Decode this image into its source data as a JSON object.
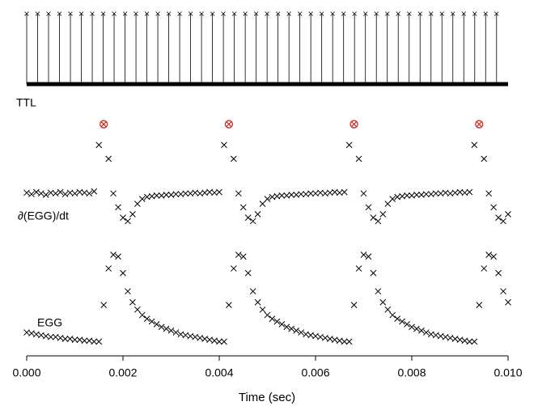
{
  "chart_data": [
    {
      "type": "stem",
      "title": "TTL",
      "x": [
        0,
        0.000227,
        0.000454,
        0.000681,
        0.000908,
        0.001135,
        0.001362,
        0.001589,
        0.001816,
        0.002043,
        0.00227,
        0.002497,
        0.002724,
        0.002951,
        0.003178,
        0.003405,
        0.003632,
        0.003859,
        0.004086,
        0.004313,
        0.00454,
        0.004767,
        0.004994,
        0.005221,
        0.005448,
        0.005675,
        0.005902,
        0.006129,
        0.006356,
        0.006583,
        0.00681,
        0.007037,
        0.007264,
        0.007491,
        0.007718,
        0.007945,
        0.008172,
        0.008399,
        0.008626,
        0.008853,
        0.00908,
        0.009307,
        0.009534,
        0.009761
      ],
      "values": [
        1,
        1,
        1,
        1,
        1,
        1,
        1,
        1,
        1,
        1,
        1,
        1,
        1,
        1,
        1,
        1,
        1,
        1,
        1,
        1,
        1,
        1,
        1,
        1,
        1,
        1,
        1,
        1,
        1,
        1,
        1,
        1,
        1,
        1,
        1,
        1,
        1,
        1,
        1,
        1,
        1,
        1,
        1,
        1
      ],
      "ylim": [
        0,
        1
      ],
      "color": "#000000"
    },
    {
      "type": "scatter",
      "xlabel": "Time (sec)",
      "xlim": [
        0,
        0.01
      ],
      "xticks": [
        {
          "value": 0,
          "label": "0.000"
        },
        {
          "value": 0.002,
          "label": "0.002"
        },
        {
          "value": 0.004,
          "label": "0.004"
        },
        {
          "value": 0.006,
          "label": "0.006"
        },
        {
          "value": 0.008,
          "label": "0.008"
        },
        {
          "value": 0.01,
          "label": "0.010"
        }
      ],
      "x": [
        0,
        0.0001,
        0.0002,
        0.0003,
        0.0004,
        0.0005,
        0.0006,
        0.0007,
        0.0008,
        0.0009,
        0.001,
        0.0011,
        0.0012,
        0.0013,
        0.0014,
        0.0015,
        0.0016,
        0.0017,
        0.0018,
        0.0019,
        0.002,
        0.0021,
        0.0022,
        0.0023,
        0.0024,
        0.0025,
        0.0026,
        0.0027,
        0.0028,
        0.0029,
        0.003,
        0.0031,
        0.0032,
        0.0033,
        0.0034,
        0.0035,
        0.0036,
        0.0037,
        0.0038,
        0.0039,
        0.004,
        0.0041,
        0.0042,
        0.0043,
        0.0044,
        0.0045,
        0.0046,
        0.0047,
        0.0048,
        0.0049,
        0.005,
        0.0051,
        0.0052,
        0.0053,
        0.0054,
        0.0055,
        0.0056,
        0.0057,
        0.0058,
        0.0059,
        0.006,
        0.0061,
        0.0062,
        0.0063,
        0.0064,
        0.0065,
        0.0066,
        0.0067,
        0.0068,
        0.0069,
        0.007,
        0.0071,
        0.0072,
        0.0073,
        0.0074,
        0.0075,
        0.0076,
        0.0077,
        0.0078,
        0.0079,
        0.008,
        0.0081,
        0.0082,
        0.0083,
        0.0084,
        0.0085,
        0.0086,
        0.0087,
        0.0088,
        0.0089,
        0.009,
        0.0091,
        0.0092,
        0.0093,
        0.0094,
        0.0095,
        0.0096,
        0.0097,
        0.0098,
        0.0099,
        0.01
      ],
      "series": [
        {
          "name": "∂(EGG)/dt",
          "color": "#000000",
          "ylim": [
            -0.5,
            1.1
          ],
          "values": [
            0.01,
            -0.01,
            0.02,
            0,
            -0.02,
            0.01,
            0,
            0.02,
            -0.01,
            0.01,
            0,
            0.02,
            0.01,
            0,
            0.03,
            0.7,
            1.0,
            0.5,
            0.0,
            -0.2,
            -0.35,
            -0.4,
            -0.3,
            -0.15,
            -0.08,
            -0.05,
            -0.04,
            -0.03,
            -0.03,
            -0.02,
            -0.02,
            -0.01,
            -0.01,
            0,
            0,
            0.01,
            0,
            0.01,
            0.02,
            0.01,
            0.02,
            0.7,
            1.0,
            0.5,
            0.0,
            -0.2,
            -0.35,
            -0.4,
            -0.3,
            -0.15,
            -0.08,
            -0.05,
            -0.04,
            -0.03,
            -0.03,
            -0.02,
            -0.02,
            -0.01,
            -0.01,
            0,
            0,
            0.01,
            0,
            0.01,
            0.02,
            0.01,
            0.02,
            0.7,
            1.0,
            0.5,
            0.0,
            -0.2,
            -0.35,
            -0.4,
            -0.3,
            -0.15,
            -0.08,
            -0.05,
            -0.04,
            -0.03,
            -0.03,
            -0.02,
            -0.02,
            -0.01,
            -0.01,
            0,
            0,
            0.01,
            0,
            0.01,
            0.02,
            0.01,
            0.02,
            0.7,
            1.0,
            0.5,
            0.0,
            -0.2,
            -0.35,
            -0.4,
            -0.3
          ],
          "peaks": {
            "x": [
              0.0016,
              0.0042,
              0.0068,
              0.0094
            ],
            "values": [
              1.0,
              1.0,
              1.0,
              1.0
            ],
            "color": "#d62728"
          }
        },
        {
          "name": "EGG",
          "color": "#000000",
          "ylim": [
            0,
            1
          ],
          "values": [
            0.15,
            0.14,
            0.13,
            0.12,
            0.11,
            0.1,
            0.1,
            0.09,
            0.08,
            0.08,
            0.07,
            0.07,
            0.06,
            0.06,
            0.05,
            0.05,
            0.45,
            0.85,
            1.0,
            0.98,
            0.8,
            0.6,
            0.48,
            0.4,
            0.34,
            0.3,
            0.27,
            0.24,
            0.21,
            0.19,
            0.17,
            0.15,
            0.13,
            0.12,
            0.11,
            0.1,
            0.09,
            0.08,
            0.07,
            0.06,
            0.05,
            0.05,
            0.45,
            0.85,
            1.0,
            0.98,
            0.8,
            0.6,
            0.48,
            0.4,
            0.34,
            0.3,
            0.27,
            0.24,
            0.21,
            0.19,
            0.17,
            0.15,
            0.13,
            0.12,
            0.11,
            0.1,
            0.09,
            0.08,
            0.07,
            0.06,
            0.05,
            0.05,
            0.45,
            0.85,
            1.0,
            0.98,
            0.8,
            0.6,
            0.48,
            0.4,
            0.34,
            0.3,
            0.27,
            0.24,
            0.21,
            0.19,
            0.17,
            0.15,
            0.13,
            0.12,
            0.11,
            0.1,
            0.09,
            0.08,
            0.07,
            0.06,
            0.05,
            0.05,
            0.45,
            0.85,
            1.0,
            0.98,
            0.8,
            0.6,
            0.48
          ]
        }
      ]
    }
  ]
}
